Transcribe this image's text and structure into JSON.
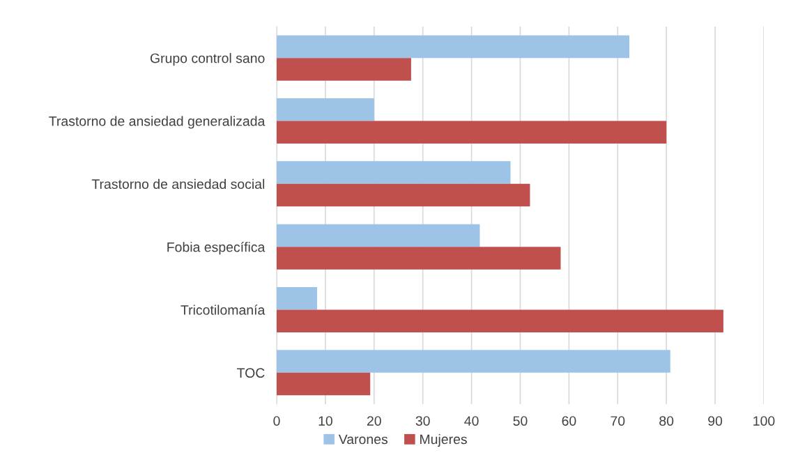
{
  "chart_data": {
    "type": "bar",
    "orientation": "horizontal",
    "categories": [
      "Grupo control sano",
      "Trastorno de ansiedad generalizada",
      "Trastorno de ansiedad social",
      "Fobia específica",
      "Tricotilomanía",
      "TOC"
    ],
    "series": [
      {
        "name": "Varones",
        "color": "#9dc3e6",
        "values": [
          72.4,
          20,
          48,
          41.7,
          8.3,
          80.8
        ]
      },
      {
        "name": "Mujeres",
        "color": "#c0504d",
        "values": [
          27.6,
          80,
          52,
          58.3,
          91.7,
          19.2
        ]
      }
    ],
    "xlim": [
      0,
      100
    ],
    "xticks": [
      0,
      10,
      20,
      30,
      40,
      50,
      60,
      70,
      80,
      90,
      100
    ],
    "grid": "x",
    "legend": "bottom"
  }
}
